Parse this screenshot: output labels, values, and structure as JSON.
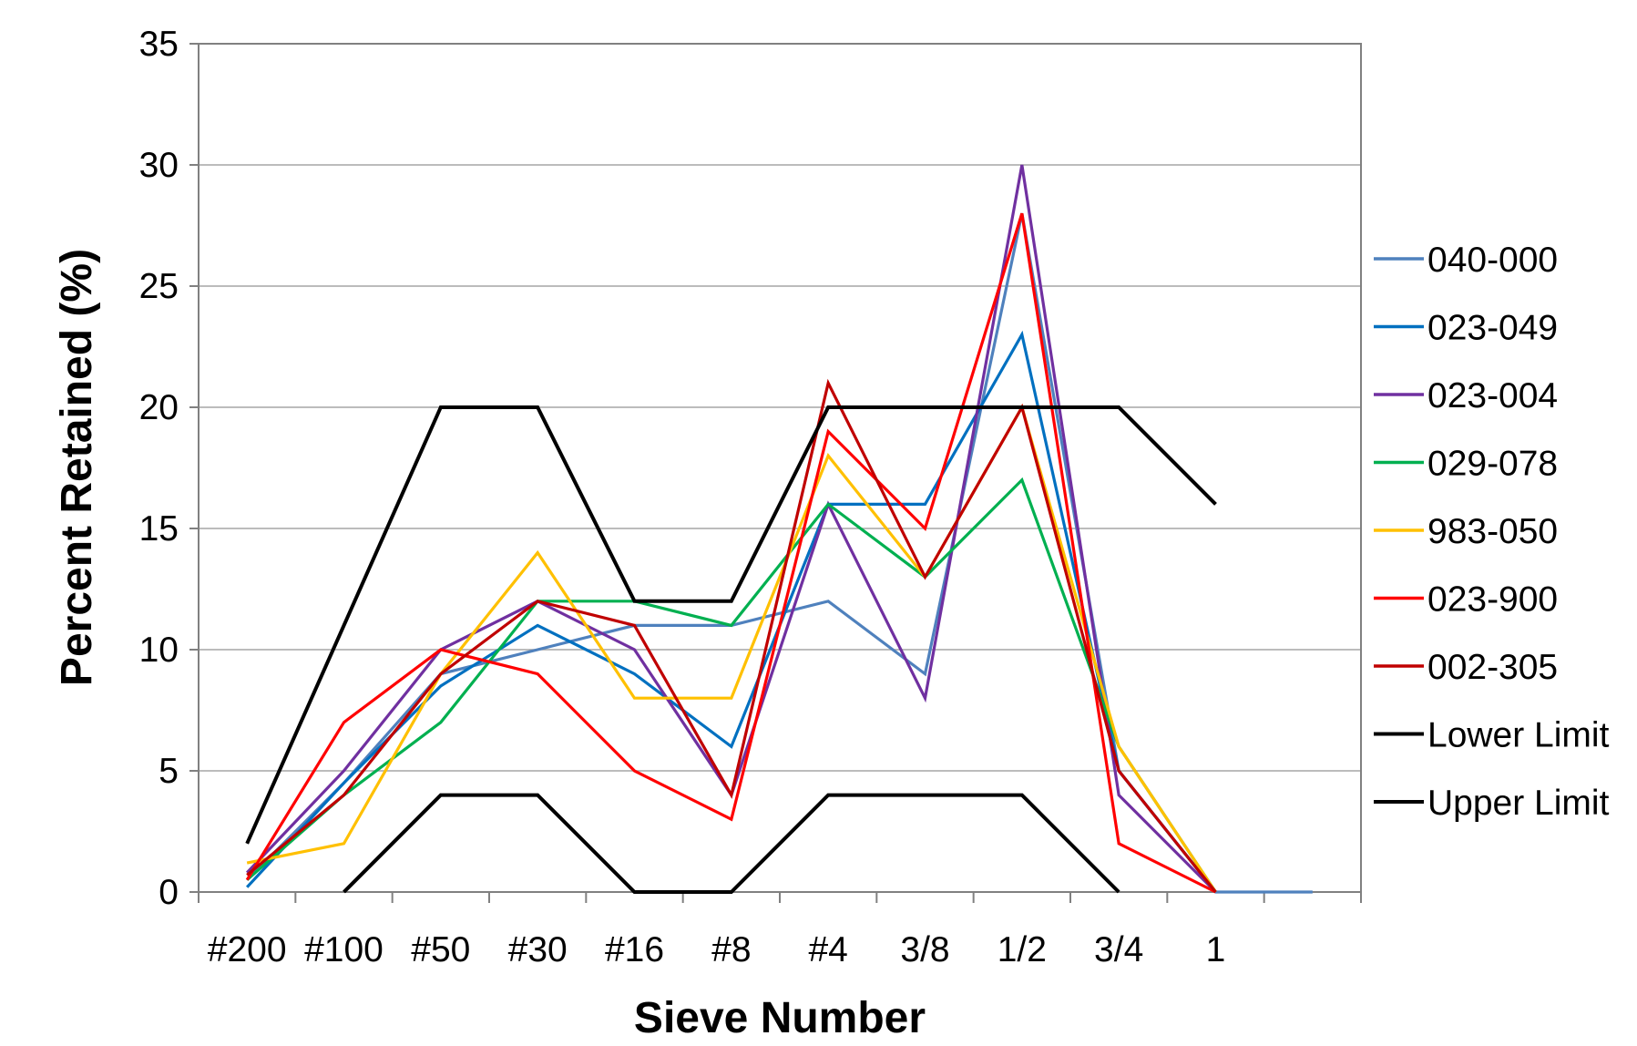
{
  "chart_data": {
    "type": "line",
    "title": "",
    "xlabel": "Sieve Number",
    "ylabel": "Percent Retained (%)",
    "ylim": [
      0,
      35
    ],
    "yticks": [
      0,
      5,
      10,
      15,
      20,
      25,
      30,
      35
    ],
    "grid": "horizontal",
    "legend_position": "right",
    "categories": [
      "#200",
      "#100",
      "#50",
      "#30",
      "#16",
      "#8",
      "#4",
      "3/8",
      "1/2",
      "3/4",
      "1",
      ""
    ],
    "series": [
      {
        "name": "040-000",
        "color": "#4F81BD",
        "values": [
          0.5,
          4.5,
          9,
          10,
          11,
          11,
          12,
          9,
          28,
          5,
          0,
          0
        ]
      },
      {
        "name": "023-049",
        "color": "#0070C0",
        "values": [
          0.2,
          4.5,
          8.5,
          11,
          9,
          6,
          16,
          16,
          23,
          5,
          0,
          null
        ]
      },
      {
        "name": "023-004",
        "color": "#7030A0",
        "values": [
          0.8,
          5,
          10,
          12,
          10,
          4,
          16,
          8,
          30,
          4,
          0,
          null
        ]
      },
      {
        "name": "029-078",
        "color": "#00B050",
        "values": [
          0.5,
          4,
          7,
          12,
          12,
          11,
          16,
          13,
          17,
          6,
          0,
          null
        ]
      },
      {
        "name": "983-050",
        "color": "#FFC000",
        "values": [
          1.2,
          2,
          9,
          14,
          8,
          8,
          18,
          13,
          20,
          6,
          0,
          null
        ]
      },
      {
        "name": "023-900",
        "color": "#FF0000",
        "values": [
          0.5,
          7,
          10,
          9,
          5,
          3,
          19,
          15,
          28,
          2,
          0,
          null
        ]
      },
      {
        "name": "002-305",
        "color": "#C00000",
        "values": [
          0.7,
          4,
          9,
          12,
          11,
          4,
          21,
          13,
          20,
          5,
          0,
          null
        ]
      },
      {
        "name": "Lower Limit",
        "color": "#000000",
        "values": [
          null,
          0,
          4,
          4,
          0,
          0,
          4,
          4,
          4,
          0,
          null,
          null
        ]
      },
      {
        "name": "Upper Limit",
        "color": "#000000",
        "values": [
          2,
          11,
          20,
          20,
          12,
          12,
          20,
          20,
          20,
          20,
          16,
          null
        ]
      }
    ]
  }
}
